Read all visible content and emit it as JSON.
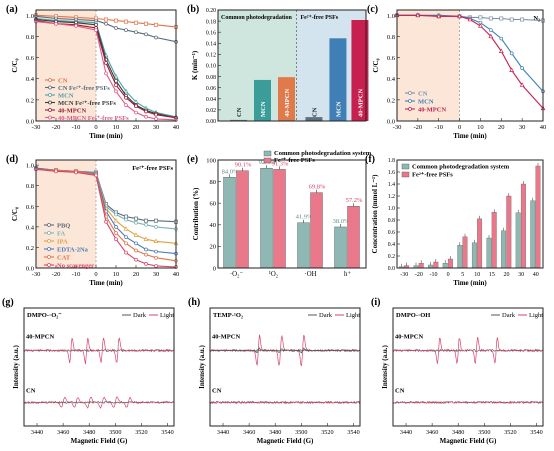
{
  "panels": {
    "a": {
      "label": "(a)",
      "xlabel": "Time (min)",
      "ylabel": "C/C₀"
    },
    "b": {
      "label": "(b)",
      "ylabel": "K (min⁻¹)",
      "region_left": "Common photodegradation",
      "region_right": "Fe²⁺-free PSFs"
    },
    "c": {
      "label": "(c)",
      "xlabel": "Time (min)",
      "ylabel": "C/C₀",
      "corner": "N₂"
    },
    "d": {
      "label": "(d)",
      "xlabel": "Time (min)",
      "ylabel": "C/C₀",
      "corner": "Fe²⁺-free PSFs"
    },
    "e": {
      "label": "(e)",
      "ylabel": "Contribution (%)"
    },
    "f": {
      "label": "(f)",
      "xlabel": "Time (min)",
      "ylabel": "Concentration (mmol L⁻¹)"
    },
    "g": {
      "label": "(g)",
      "probe": "DMPO-·O₂⁻",
      "xlabel": "Magnetic Field (G)",
      "ylabel": "Intensity (a.u.)",
      "top_label": "40-MPCN",
      "bottom_label": "CN"
    },
    "h": {
      "label": "(h)",
      "probe": "TEMP-¹O₂",
      "xlabel": "Magnetic Field (G)",
      "ylabel": "Intensity (a.u.)",
      "top_label": "40-MPCN",
      "bottom_label": "CN"
    },
    "i": {
      "label": "(i)",
      "probe": "DMPO-·OH",
      "xlabel": "Magnetic Field (G)",
      "ylabel": "Intensity (a.u.)",
      "top_label": "40-MPCN",
      "bottom_label": "CN"
    }
  },
  "colors": {
    "CN": "#e0734a",
    "MCN": "#3f7fb5",
    "MPCN": "#c8204e",
    "dark": "#555555",
    "light": "#d8446a",
    "teal": "#7fb3b3",
    "pink": "#e8788a",
    "bg_peach": "#fbe6d8",
    "bg_green": "#cfe6df",
    "bg_blue": "#d4e4ef"
  },
  "chart_data": [
    {
      "panel": "a",
      "type": "line",
      "x": [
        -30,
        -20,
        -10,
        0,
        5,
        10,
        15,
        20,
        25,
        30,
        40
      ],
      "xlim": [
        -30,
        40
      ],
      "ylim": [
        0,
        1.05
      ],
      "xticks": [
        "-30",
        "-20",
        "-10",
        "0",
        "10",
        "20",
        "30",
        "40"
      ],
      "yticks": [
        "0.0",
        "0.2",
        "0.4",
        "0.6",
        "0.8",
        "1.0"
      ],
      "series": [
        {
          "name": "CN",
          "color": "#e0734a",
          "values": [
            1.0,
            0.99,
            0.98,
            0.97,
            0.96,
            0.95,
            0.94,
            0.93,
            0.92,
            0.91,
            0.89
          ]
        },
        {
          "name": "CN Fe²⁺-free PSFs",
          "color": "#5b6a78",
          "values": [
            0.99,
            0.97,
            0.96,
            0.95,
            0.92,
            0.88,
            0.86,
            0.84,
            0.82,
            0.79,
            0.75
          ]
        },
        {
          "name": "MCN",
          "color": "#4aa0a8",
          "values": [
            0.97,
            0.95,
            0.94,
            0.93,
            0.62,
            0.42,
            0.28,
            0.18,
            0.12,
            0.08,
            0.04
          ]
        },
        {
          "name": "MCN Fe²⁺-free PSFs",
          "color": "#3a3a3a",
          "values": [
            0.96,
            0.94,
            0.93,
            0.91,
            0.58,
            0.38,
            0.24,
            0.15,
            0.1,
            0.07,
            0.03
          ]
        },
        {
          "name": "40-MPCN",
          "color": "#9b1b30",
          "values": [
            0.95,
            0.92,
            0.91,
            0.88,
            0.55,
            0.34,
            0.22,
            0.14,
            0.09,
            0.06,
            0.03
          ]
        },
        {
          "name": "40-MPCN Fe²⁺-free PSFs",
          "color": "#e05a8a",
          "values": [
            0.94,
            0.92,
            0.9,
            0.86,
            0.45,
            0.28,
            0.15,
            0.08,
            0.04,
            0.02,
            0.01
          ]
        }
      ]
    },
    {
      "panel": "b",
      "type": "bar",
      "categories": [
        "CN",
        "MCN",
        "40-MPCN",
        "CN",
        "MCN",
        "40-MPCN"
      ],
      "values": [
        0.002,
        0.074,
        0.079,
        0.007,
        0.149,
        0.182
      ],
      "colors": [
        "#6a7b8a",
        "#3a9d9a",
        "#e07a4a",
        "#5c7080",
        "#3f7fb5",
        "#c8204e"
      ],
      "ylim": [
        0,
        0.2
      ],
      "yticks": [
        "0.00",
        "0.02",
        "0.04",
        "0.06",
        "0.08",
        "0.10",
        "0.12",
        "0.14",
        "0.16",
        "0.18",
        "0.20"
      ]
    },
    {
      "panel": "c",
      "type": "line",
      "x": [
        -30,
        -20,
        -10,
        0,
        5,
        10,
        15,
        20,
        25,
        30,
        40
      ],
      "xlim": [
        -30,
        40
      ],
      "ylim": [
        0,
        1.05
      ],
      "xticks": [
        "-30",
        "-20",
        "-10",
        "0",
        "10",
        "20",
        "30",
        "40"
      ],
      "yticks": [
        "0.0",
        "0.2",
        "0.4",
        "0.6",
        "0.8",
        "1.0"
      ],
      "series": [
        {
          "name": "CN",
          "color": "#7b8fa6",
          "values": [
            1.0,
            1.0,
            0.99,
            0.99,
            0.98,
            0.98,
            0.97,
            0.97,
            0.96,
            0.96,
            0.95
          ]
        },
        {
          "name": "MCN",
          "color": "#3f7fb5",
          "values": [
            1.0,
            1.0,
            1.0,
            0.99,
            0.97,
            0.93,
            0.86,
            0.78,
            0.64,
            0.5,
            0.28
          ]
        },
        {
          "name": "40-MPCN",
          "color": "#c8204e",
          "values": [
            1.0,
            1.0,
            0.99,
            0.99,
            0.96,
            0.9,
            0.8,
            0.66,
            0.48,
            0.34,
            0.12
          ]
        }
      ]
    },
    {
      "panel": "d",
      "type": "line",
      "x": [
        -30,
        -20,
        -10,
        0,
        5,
        10,
        15,
        20,
        25,
        30,
        40
      ],
      "xlim": [
        -30,
        40
      ],
      "ylim": [
        0,
        1.05
      ],
      "xticks": [
        "-30",
        "-20",
        "-10",
        "0",
        "10",
        "20",
        "30",
        "40"
      ],
      "yticks": [
        "0.0",
        "0.2",
        "0.4",
        "0.6",
        "0.8",
        "1.0"
      ],
      "series": [
        {
          "name": "PBQ",
          "color": "#5b6a78",
          "values": [
            0.97,
            0.95,
            0.94,
            0.93,
            0.62,
            0.54,
            0.5,
            0.48,
            0.46,
            0.46,
            0.45
          ]
        },
        {
          "name": "FA",
          "color": "#7ab3b8",
          "values": [
            0.97,
            0.95,
            0.94,
            0.93,
            0.6,
            0.52,
            0.47,
            0.44,
            0.42,
            0.4,
            0.38
          ]
        },
        {
          "name": "IPA",
          "color": "#e0a040",
          "values": [
            0.97,
            0.95,
            0.94,
            0.92,
            0.58,
            0.46,
            0.38,
            0.32,
            0.28,
            0.26,
            0.24
          ]
        },
        {
          "name": "EDTA-2Na",
          "color": "#4a78b8",
          "values": [
            0.97,
            0.95,
            0.94,
            0.92,
            0.55,
            0.4,
            0.3,
            0.24,
            0.18,
            0.16,
            0.14
          ]
        },
        {
          "name": "CAT",
          "color": "#e0734a",
          "values": [
            0.96,
            0.95,
            0.94,
            0.91,
            0.5,
            0.34,
            0.24,
            0.17,
            0.13,
            0.1,
            0.07
          ]
        },
        {
          "name": "No scavenger",
          "color": "#d8446a",
          "values": [
            0.96,
            0.94,
            0.93,
            0.9,
            0.45,
            0.28,
            0.15,
            0.08,
            0.04,
            0.02,
            0.01
          ]
        }
      ]
    },
    {
      "panel": "e",
      "type": "bar",
      "categories": [
        "·O₂⁻",
        "¹O₂",
        "·OH",
        "h⁺"
      ],
      "series": [
        {
          "name": "Common photodegradation system",
          "color": "#8fb7b3",
          "values": [
            84.0,
            92.4,
            41.9,
            38.0
          ],
          "labels": [
            "84.0%",
            "92.4%",
            "41.9%",
            "38.0%"
          ]
        },
        {
          "name": "Fe²⁺-free PSFs",
          "color": "#e8788a",
          "values": [
            90.1,
            91.3,
            69.8,
            57.2
          ],
          "labels": [
            "90.1%",
            "91.3%",
            "69.8%",
            "57.2%"
          ]
        }
      ],
      "ylim": [
        0,
        100
      ],
      "yticks": [
        "0",
        "20",
        "40",
        "60",
        "80",
        "100"
      ]
    },
    {
      "panel": "f",
      "type": "bar",
      "categories": [
        "-30",
        "-20",
        "-10",
        "0",
        "5",
        "10",
        "15",
        "20",
        "30",
        "40"
      ],
      "series": [
        {
          "name": "Common photodegradation system",
          "color": "#8fb7b3",
          "values": [
            0.02,
            0.04,
            0.05,
            0.08,
            0.38,
            0.42,
            0.5,
            0.62,
            0.92,
            1.12
          ]
        },
        {
          "name": "Fe²⁺-free PSFs",
          "color": "#e8788a",
          "values": [
            0.04,
            0.08,
            0.1,
            0.15,
            0.52,
            0.82,
            0.93,
            1.2,
            1.4,
            1.7
          ]
        }
      ],
      "ylim": [
        0,
        1.8
      ],
      "yticks": [
        "0.0",
        "0.2",
        "0.4",
        "0.6",
        "0.8",
        "1.0",
        "1.2",
        "1.4",
        "1.6",
        "1.8"
      ]
    },
    {
      "panel": "g",
      "type": "line",
      "legend": [
        "Dark",
        "Light"
      ],
      "xlim": [
        3430,
        3545
      ],
      "xticks": [
        "3440",
        "3460",
        "3480",
        "3500",
        "3520",
        "3540"
      ],
      "top_peaks": [
        3466,
        3478,
        3490,
        3502
      ],
      "bottom_peaks": [
        3460,
        3470,
        3480,
        3490,
        3500,
        3510
      ]
    },
    {
      "panel": "h",
      "type": "line",
      "legend": [
        "Dark",
        "Light"
      ],
      "xlim": [
        3430,
        3545
      ],
      "xticks": [
        "3440",
        "3460",
        "3480",
        "3500",
        "3520",
        "3540"
      ],
      "top_peaks": [
        3467,
        3484,
        3501
      ]
    },
    {
      "panel": "i",
      "type": "line",
      "legend": [
        "Dark",
        "Light"
      ],
      "xlim": [
        3430,
        3545
      ],
      "xticks": [
        "3440",
        "3460",
        "3480",
        "3500",
        "3520",
        "3540"
      ],
      "top_peaks": [
        3465,
        3480,
        3494,
        3509
      ]
    }
  ]
}
